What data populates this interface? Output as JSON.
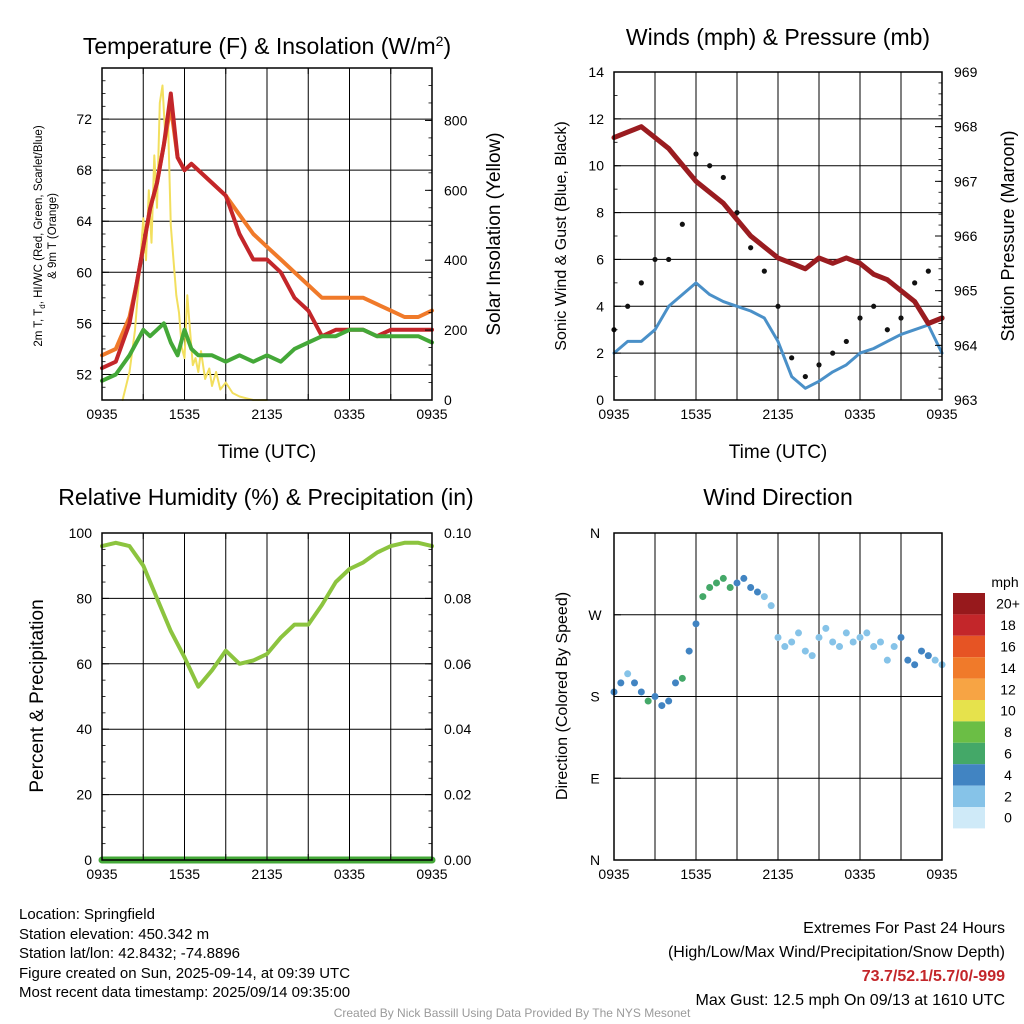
{
  "chart_data": [
    {
      "type": "line",
      "title": "Temperature (F) & Insolation (W/m²)",
      "xlabel": "Time (UTC)",
      "ylabel": "2m T, Td, HI/WC (Red, Green, Scarlet/Blue) & 9m T (Orange)",
      "y2label": "Solar Insolation (Yellow)",
      "x_ticks": [
        "0935",
        "1535",
        "2135",
        "0335",
        "0935"
      ],
      "ylim": [
        50,
        76
      ],
      "y_ticks": [
        "52",
        "56",
        "60",
        "64",
        "68",
        "72"
      ],
      "y2lim": [
        0,
        950
      ],
      "y2_ticks": [
        "0",
        "200",
        "400",
        "600",
        "800"
      ],
      "x_hours": [
        0,
        1,
        2,
        2.5,
        3,
        3.5,
        4,
        4.5,
        5,
        5.5,
        6,
        6.5,
        7,
        7.5,
        8,
        9,
        10,
        11,
        12,
        13,
        14,
        15,
        16,
        17,
        18,
        19,
        20,
        21,
        22,
        23,
        24
      ],
      "series": [
        {
          "color": "#c3262a",
          "axis": "left",
          "values": [
            52.5,
            53,
            56,
            59,
            62,
            65,
            67,
            70,
            74,
            69,
            68,
            68.5,
            68,
            67.5,
            67,
            66,
            63,
            61,
            61,
            60,
            58,
            57,
            55,
            55.5,
            55.5,
            55.5,
            55,
            55.5,
            55.5,
            55.5,
            55.5
          ]
        },
        {
          "color": "#f07a2a",
          "axis": "left",
          "values": [
            53.5,
            54,
            56.5,
            59,
            62,
            65,
            67,
            70,
            73,
            69,
            68,
            68.5,
            68,
            67.5,
            67,
            66,
            64.5,
            63,
            62,
            61,
            60,
            59,
            58,
            58,
            58,
            58,
            57.5,
            57,
            56.5,
            56.5,
            57
          ]
        },
        {
          "color": "#44a838",
          "axis": "left",
          "values": [
            51.5,
            52,
            53.5,
            54.5,
            55.5,
            55,
            55.5,
            56,
            54.5,
            53.5,
            55.5,
            54,
            53.5,
            53.5,
            53.5,
            53,
            53.5,
            53,
            53.5,
            53,
            54,
            54.5,
            55,
            55,
            55.5,
            55.5,
            55,
            55,
            55,
            55,
            54.5
          ]
        }
      ],
      "insolation": {
        "color": "#f2df5e",
        "x_hours": [
          1.5,
          2,
          2.4,
          2.7,
          3,
          3.2,
          3.4,
          3.6,
          3.8,
          4,
          4.2,
          4.4,
          4.6,
          4.8,
          5,
          5.2,
          5.4,
          5.6,
          5.8,
          6,
          6.2,
          6.4,
          6.6,
          6.8,
          7,
          7.2,
          7.5,
          7.8,
          8,
          8.3,
          8.6,
          9,
          9.5,
          10,
          10.5,
          11,
          11.3,
          12
        ],
        "values": [
          0,
          80,
          200,
          350,
          520,
          400,
          600,
          450,
          700,
          550,
          850,
          900,
          750,
          800,
          500,
          400,
          300,
          250,
          150,
          120,
          300,
          200,
          100,
          120,
          80,
          140,
          60,
          90,
          40,
          80,
          30,
          50,
          20,
          10,
          5,
          0,
          0,
          0
        ]
      }
    },
    {
      "type": "scatter",
      "title": "Winds (mph) & Pressure (mb)",
      "xlabel": "Time (UTC)",
      "ylabel": "Sonic Wind & Gust (Blue, Black)",
      "y2label": "Station Pressure (Maroon)",
      "x_ticks": [
        "0935",
        "1535",
        "2135",
        "0335",
        "0935"
      ],
      "ylim": [
        0,
        14
      ],
      "y_ticks": [
        "0",
        "2",
        "4",
        "6",
        "8",
        "10",
        "12",
        "14"
      ],
      "y2lim": [
        963,
        969
      ],
      "y2_ticks": [
        "963",
        "964",
        "965",
        "966",
        "967",
        "968",
        "969"
      ],
      "wind": {
        "color": "#4a90c8",
        "x_hours": [
          0,
          1,
          2,
          3,
          4,
          5,
          6,
          7,
          8,
          9,
          10,
          11,
          12,
          13,
          14,
          15,
          16,
          17,
          18,
          19,
          20,
          21,
          22,
          23,
          24
        ],
        "values": [
          2,
          2.5,
          2.5,
          3,
          4,
          4.5,
          5,
          4.5,
          4.2,
          4,
          3.8,
          3.5,
          2.5,
          1,
          0.5,
          0.8,
          1.2,
          1.5,
          2,
          2.2,
          2.5,
          2.8,
          3,
          3.2,
          2
        ]
      },
      "gust": {
        "color": "#111111",
        "x_hours": [
          0,
          1,
          2,
          3,
          4,
          5,
          6,
          7,
          8,
          9,
          10,
          11,
          12,
          13,
          14,
          15,
          16,
          17,
          18,
          19,
          20,
          21,
          22,
          23,
          24
        ],
        "values": [
          3,
          4,
          5,
          6,
          6,
          7.5,
          10.5,
          10,
          9.5,
          8,
          6.5,
          5.5,
          4,
          1.8,
          1,
          1.5,
          2,
          2.5,
          3.5,
          4,
          3,
          3.5,
          5,
          5.5,
          3.5
        ]
      },
      "pressure": {
        "color": "#9a1c20",
        "x_hours": [
          0,
          1,
          2,
          3,
          4,
          5,
          6,
          7,
          8,
          9,
          10,
          11,
          12,
          13,
          14,
          15,
          16,
          17,
          18,
          19,
          20,
          21,
          22,
          23,
          24
        ],
        "values": [
          967.8,
          967.9,
          968,
          967.8,
          967.6,
          967.3,
          967,
          966.8,
          966.6,
          966.3,
          966,
          965.8,
          965.6,
          965.5,
          965.4,
          965.6,
          965.5,
          965.6,
          965.5,
          965.3,
          965.2,
          965,
          964.8,
          964.4,
          964.5
        ]
      }
    },
    {
      "type": "line",
      "title": "Relative Humidity (%) & Precipitation (in)",
      "xlabel": "",
      "ylabel": "Percent & Precipitation",
      "x_ticks": [
        "0935",
        "1535",
        "2135",
        "0335",
        "0935"
      ],
      "ylim": [
        0,
        100
      ],
      "y_ticks": [
        "0",
        "20",
        "40",
        "60",
        "80",
        "100"
      ],
      "y2lim": [
        0,
        0.1
      ],
      "y2_ticks": [
        "0.00",
        "0.02",
        "0.04",
        "0.06",
        "0.08",
        "0.10"
      ],
      "x_hours": [
        0,
        1,
        2,
        3,
        4,
        5,
        6,
        7,
        8,
        9,
        10,
        11,
        12,
        13,
        14,
        15,
        16,
        17,
        18,
        19,
        20,
        21,
        22,
        23,
        24
      ],
      "humidity": {
        "color": "#8cc43f",
        "values": [
          96,
          97,
          96,
          90,
          80,
          70,
          62,
          53,
          58,
          64,
          60,
          61,
          63,
          68,
          72,
          72,
          78,
          85,
          89,
          91,
          94,
          96,
          97,
          97,
          96
        ]
      },
      "precip": {
        "color": "#44a838",
        "values": [
          0,
          0,
          0,
          0,
          0,
          0,
          0,
          0,
          0,
          0,
          0,
          0,
          0,
          0,
          0,
          0,
          0,
          0,
          0,
          0,
          0,
          0,
          0,
          0,
          0
        ]
      }
    },
    {
      "type": "scatter",
      "title": "Wind Direction",
      "xlabel": "",
      "ylabel": "Direction (Colored By Speed)",
      "x_ticks": [
        "0935",
        "1535",
        "2135",
        "0335",
        "0935"
      ],
      "y_ticks": [
        "N",
        "E",
        "S",
        "W",
        "N"
      ],
      "ylim": [
        0,
        360
      ],
      "points": {
        "x_hours": [
          0,
          0.5,
          1,
          1.5,
          2,
          2.5,
          3,
          3.5,
          4,
          4.5,
          5,
          5.5,
          6,
          6.5,
          7,
          7.5,
          8,
          8.5,
          9,
          9.5,
          10,
          10.5,
          11,
          11.5,
          12,
          12.5,
          13,
          13.5,
          14,
          14.5,
          15,
          15.5,
          16,
          16.5,
          17,
          17.5,
          18,
          18.5,
          19,
          19.5,
          20,
          20.5,
          21,
          21.5,
          22,
          22.5,
          23,
          23.5,
          24
        ],
        "directions": [
          185,
          195,
          205,
          195,
          185,
          175,
          180,
          170,
          175,
          195,
          200,
          230,
          260,
          290,
          300,
          305,
          310,
          300,
          305,
          310,
          300,
          295,
          290,
          280,
          245,
          235,
          240,
          250,
          230,
          225,
          245,
          255,
          240,
          235,
          250,
          240,
          245,
          250,
          235,
          240,
          220,
          235,
          245,
          220,
          215,
          230,
          225,
          220,
          215
        ],
        "speeds": [
          3,
          3,
          2,
          3,
          4,
          5,
          4,
          4,
          3,
          4,
          5,
          4,
          4,
          5,
          6,
          5,
          5,
          5,
          4,
          4,
          4,
          3,
          2,
          2,
          1,
          1,
          1,
          1,
          1,
          1,
          1,
          1,
          1,
          1,
          1,
          1,
          1,
          1,
          1,
          1,
          2,
          2,
          3,
          3,
          3,
          3,
          3,
          2,
          2
        ]
      },
      "legend": {
        "title": "mph",
        "labels": [
          "0",
          "2",
          "4",
          "6",
          "8",
          "10",
          "12",
          "14",
          "16",
          "18",
          "20+"
        ],
        "colors": [
          "#cfeaf8",
          "#86c3e8",
          "#4184c2",
          "#44a868",
          "#6bbe45",
          "#e6e24c",
          "#f7a444",
          "#f07a2a",
          "#e65424",
          "#c3262a",
          "#97191c"
        ]
      }
    }
  ],
  "info_left": [
    "Location: Springfield",
    "Station elevation: 450.342 m",
    "Station lat/lon: 42.8432; -74.8896",
    "Figure created on Sun, 2025-09-14, at 09:39 UTC",
    "Most recent data timestamp: 2025/09/14 09:35:00"
  ],
  "extremes": {
    "title": "Extremes For Past 24 Hours",
    "subtitle": "(High/Low/Max Wind/Precipitation/Snow Depth)",
    "values": "73.7/52.1/5.7/0/-999",
    "max_gust": "Max Gust: 12.5 mph On 09/13 at 1610 UTC"
  },
  "credit": "Created By Nick Bassill Using Data Provided By The NYS Mesonet"
}
